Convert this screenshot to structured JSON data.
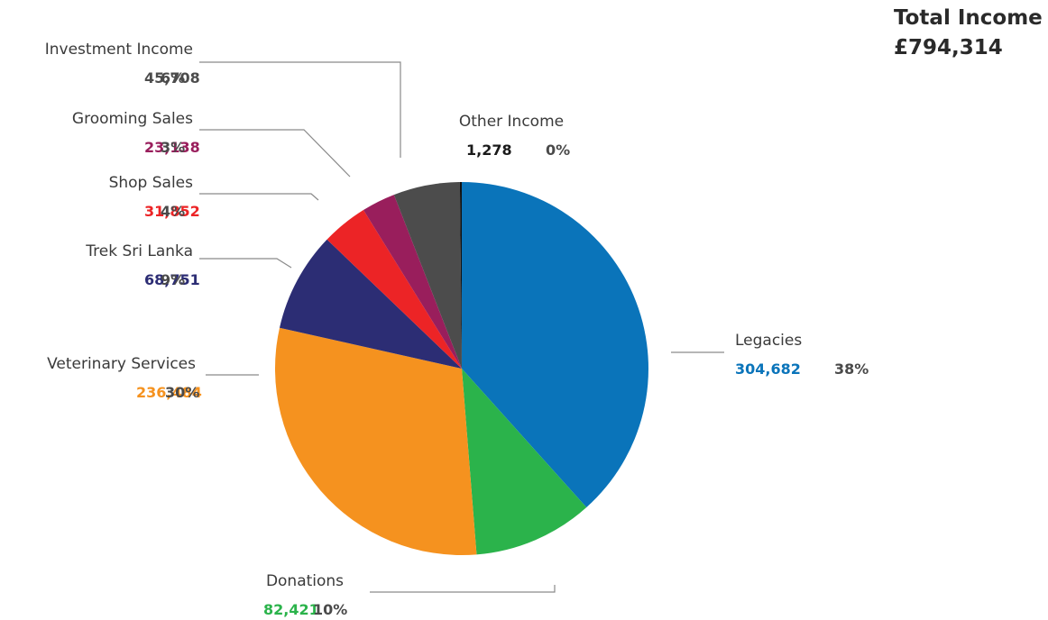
{
  "total": {
    "label": "Total Income",
    "value": "£794,314"
  },
  "chart_data": {
    "type": "pie",
    "start_angle": "12 o'clock",
    "direction": "clockwise",
    "pct_color": "#4a4a4a",
    "slices": [
      {
        "name": "Legacies",
        "value": 304682,
        "value_label": "304,682",
        "pct": "38%",
        "color": "#0a74ba"
      },
      {
        "name": "Donations",
        "value": 82421,
        "value_label": "82,421",
        "pct": "10%",
        "color": "#2bb34b"
      },
      {
        "name": "Veterinary Services",
        "value": 236484,
        "value_label": "236,484",
        "pct": "30%",
        "color": "#f5921f"
      },
      {
        "name": "Trek Sri Lanka",
        "value": 68751,
        "value_label": "68,751",
        "pct": "9%",
        "color": "#2c2d74"
      },
      {
        "name": "Shop Sales",
        "value": 31852,
        "value_label": "31,852",
        "pct": "4%",
        "color": "#ec2426"
      },
      {
        "name": "Grooming Sales",
        "value": 23138,
        "value_label": "23,138",
        "pct": "3%",
        "color": "#991e5c"
      },
      {
        "name": "Investment Income",
        "value": 45708,
        "value_label": "45,708",
        "pct": "6%",
        "color": "#4c4c4c"
      },
      {
        "name": "Other Income",
        "value": 1278,
        "value_label": "1,278",
        "pct": "0%",
        "color": "#111111"
      }
    ]
  }
}
